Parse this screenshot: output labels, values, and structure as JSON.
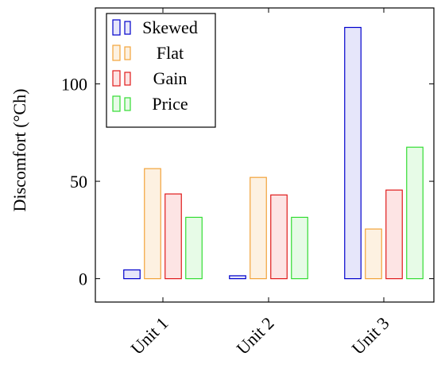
{
  "chart_data": {
    "type": "bar",
    "categories": [
      "Unit 1",
      "Unit 2",
      "Unit 3"
    ],
    "series": [
      {
        "name": "Skewed",
        "values": [
          4.5,
          1.5,
          129
        ],
        "fill": "#e6e6fa",
        "stroke": "#0000cc"
      },
      {
        "name": "Flat",
        "values": [
          56.5,
          52,
          25.5
        ],
        "fill": "#fdf1e1",
        "stroke": "#f2a33a"
      },
      {
        "name": "Gain",
        "values": [
          43.5,
          43,
          45.5
        ],
        "fill": "#fde4e4",
        "stroke": "#e01b1b"
      },
      {
        "name": "Price",
        "values": [
          31.5,
          31.5,
          67.5
        ],
        "fill": "#e7fbe7",
        "stroke": "#33dd33"
      }
    ],
    "yticks": [
      0,
      50,
      100
    ],
    "ylim": [
      -12,
      139
    ],
    "ylabel": "Discomfort (°Ch)",
    "xlabel": "",
    "title": "",
    "grid": false,
    "legend_position": "top-left"
  }
}
